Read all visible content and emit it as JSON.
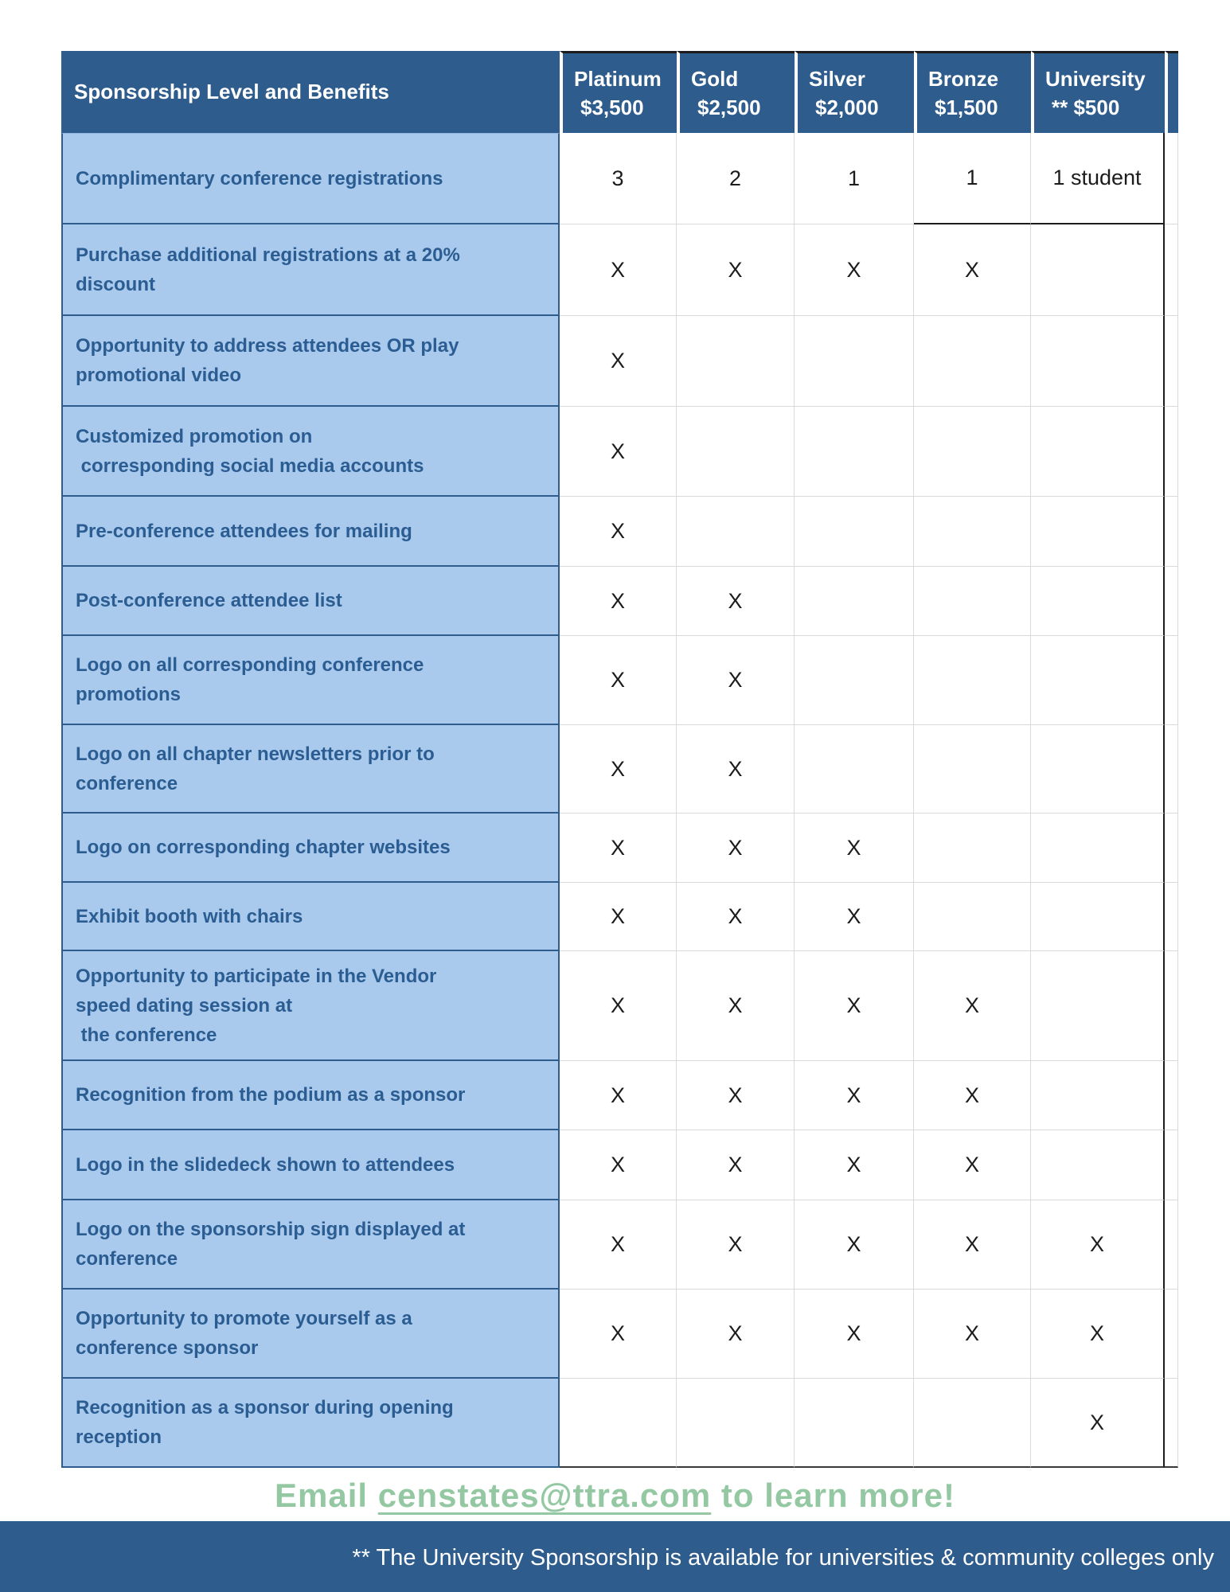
{
  "table": {
    "corner_header": "Sponsorship Level and Benefits",
    "columns": [
      {
        "name": "Platinum",
        "price": "$3,500"
      },
      {
        "name": "Gold",
        "price": "$2,500"
      },
      {
        "name": "Silver",
        "price": "$2,000"
      },
      {
        "name": "Bronze",
        "price": "$1,500"
      },
      {
        "name": "University",
        "price": "** $500"
      }
    ],
    "rows": [
      {
        "label": "Complimentary conference registrations",
        "values": [
          "3",
          "2",
          "1",
          "1",
          "1 student"
        ]
      },
      {
        "label": "Purchase additional registrations at a 20%\ndiscount",
        "values": [
          "X",
          "X",
          "X",
          "X",
          ""
        ]
      },
      {
        "label": "Opportunity to address attendees OR play\npromotional video",
        "values": [
          "X",
          "",
          "",
          "",
          ""
        ]
      },
      {
        "label": "Customized promotion on\n corresponding social media accounts",
        "values": [
          "X",
          "",
          "",
          "",
          ""
        ]
      },
      {
        "label": "Pre-conference attendees for mailing",
        "values": [
          "X",
          "",
          "",
          "",
          ""
        ]
      },
      {
        "label": "Post-conference attendee list",
        "values": [
          "X",
          "X",
          "",
          "",
          ""
        ]
      },
      {
        "label": "Logo on all corresponding conference\npromotions",
        "values": [
          "X",
          "X",
          "",
          "",
          ""
        ]
      },
      {
        "label": "Logo on all chapter newsletters prior to\nconference",
        "values": [
          "X",
          "X",
          "",
          "",
          ""
        ]
      },
      {
        "label": "Logo on corresponding chapter websites",
        "values": [
          "X",
          "X",
          "X",
          "",
          ""
        ]
      },
      {
        "label": "Exhibit booth with chairs",
        "values": [
          "X",
          "X",
          "X",
          "",
          ""
        ]
      },
      {
        "label": "Opportunity to participate in the Vendor\nspeed dating session at\n the conference",
        "values": [
          "X",
          "X",
          "X",
          "X",
          ""
        ]
      },
      {
        "label": "Recognition from the podium as a sponsor",
        "values": [
          "X",
          "X",
          "X",
          "X",
          ""
        ]
      },
      {
        "label": "Logo in the slidedeck shown to attendees",
        "values": [
          "X",
          "X",
          "X",
          "X",
          ""
        ]
      },
      {
        "label": "Logo on the sponsorship sign displayed at\nconference",
        "values": [
          "X",
          "X",
          "X",
          "X",
          "X"
        ]
      },
      {
        "label": "Opportunity to promote yourself as a\nconference sponsor",
        "values": [
          "X",
          "X",
          "X",
          "X",
          "X"
        ]
      },
      {
        "label": "Recognition as a sponsor during opening\nreception",
        "values": [
          "",
          "",
          "",
          "",
          "X"
        ]
      }
    ]
  },
  "cta": {
    "prefix": "Email ",
    "email": "censtates@ttra.com",
    "suffix": " to learn more!"
  },
  "footer": {
    "note": "** The University Sponsorship is available for universities & community colleges only"
  },
  "colors": {
    "header_blue": "#2e5c8c",
    "row_light_blue": "#a9caec",
    "label_text_blue": "#2b5d92",
    "cta_green": "#94c8a2",
    "gridline_gray": "#d9d9d9",
    "mark_black": "#1c1c1c"
  }
}
